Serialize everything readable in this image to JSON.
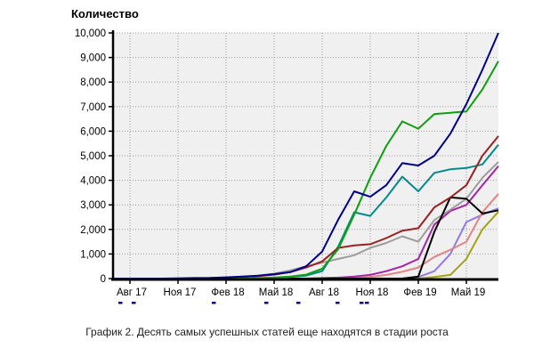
{
  "title": "Количество",
  "caption": "График 2. Десять самых успешных статей еще находятся в стадии роста",
  "colors": {
    "page_bg": "#ffffff",
    "plot_bg": "#f0f0f0",
    "grid": "#9a9a9a",
    "axis": "#000000",
    "tick_label": "#000000",
    "legend_cutoff": "#00008b"
  },
  "chart_data": {
    "type": "line",
    "title": "Количество",
    "xlabel": "",
    "ylabel": "Количество",
    "ylim": [
      0,
      10000
    ],
    "y_ticks": [
      0,
      1000,
      2000,
      3000,
      4000,
      5000,
      6000,
      7000,
      8000,
      9000,
      10000
    ],
    "y_tick_labels": [
      "0",
      "1,000",
      "2,000",
      "3,000",
      "4,000",
      "5,000",
      "6,000",
      "7,000",
      "8,000",
      "9,000",
      "10,000"
    ],
    "x_tick_labels": [
      "Авг 17",
      "Ноя 17",
      "Фев 18",
      "Май 18",
      "Авг 18",
      "Ноя 18",
      "Фев 19",
      "Май 19"
    ],
    "grid": "dotted, horizontal and vertical",
    "legend_position": "below x-axis, cut off by crop",
    "x": [
      "Июл 17",
      "Авг 17",
      "Сен 17",
      "Окт 17",
      "Ноя 17",
      "Дек 17",
      "Янв 18",
      "Фев 18",
      "Мар 18",
      "Апр 18",
      "Май 18",
      "Июн 18",
      "Июл 18",
      "Авг 18",
      "Сен 18",
      "Окт 18",
      "Ноя 18",
      "Дек 18",
      "Янв 19",
      "Фев 19",
      "Мар 19",
      "Апр 19",
      "Май 19",
      "Июн 19",
      "Июл 19"
    ],
    "x_tick_indices": [
      1,
      4,
      7,
      10,
      13,
      16,
      19,
      22
    ],
    "series_note": "10 articles, names not visible (legend cropped); series listed in draw order (last = topmost)",
    "series": [
      {
        "name": "olive",
        "color": "#A3A30F",
        "values": [
          0,
          0,
          0,
          0,
          0,
          0,
          0,
          0,
          0,
          0,
          0,
          0,
          0,
          0,
          0,
          0,
          0,
          0,
          0,
          0,
          60,
          150,
          800,
          2000,
          2720
        ]
      },
      {
        "name": "violet",
        "color": "#9678E6",
        "values": [
          0,
          0,
          0,
          0,
          0,
          0,
          0,
          0,
          0,
          0,
          0,
          0,
          0,
          0,
          0,
          0,
          0,
          0,
          0,
          60,
          300,
          1000,
          2300,
          2600,
          2860
        ]
      },
      {
        "name": "salmon",
        "color": "#E58383",
        "values": [
          0,
          0,
          0,
          0,
          0,
          0,
          0,
          0,
          0,
          0,
          0,
          0,
          0,
          0,
          0,
          20,
          60,
          150,
          280,
          450,
          880,
          1170,
          1500,
          2700,
          3450
        ]
      },
      {
        "name": "magenta",
        "color": "#A823A8",
        "values": [
          0,
          0,
          0,
          0,
          0,
          0,
          0,
          0,
          0,
          0,
          0,
          0,
          0,
          20,
          40,
          80,
          150,
          300,
          500,
          800,
          2200,
          2750,
          3000,
          3800,
          4580
        ]
      },
      {
        "name": "gray",
        "color": "#9C9C9C",
        "values": [
          0,
          0,
          0,
          0,
          0,
          10,
          20,
          30,
          60,
          120,
          200,
          330,
          500,
          650,
          800,
          950,
          1250,
          1450,
          1720,
          1500,
          2380,
          2800,
          3250,
          4100,
          4750
        ]
      },
      {
        "name": "black",
        "color": "#000000",
        "values": [
          0,
          0,
          0,
          0,
          0,
          0,
          0,
          0,
          0,
          0,
          0,
          0,
          0,
          0,
          0,
          0,
          0,
          0,
          0,
          80,
          1900,
          3300,
          3250,
          2650,
          2780
        ]
      },
      {
        "name": "teal",
        "color": "#008B8B",
        "values": [
          0,
          0,
          0,
          0,
          0,
          0,
          0,
          0,
          0,
          0,
          20,
          60,
          120,
          300,
          1300,
          2700,
          2550,
          3300,
          4150,
          3550,
          4300,
          4450,
          4500,
          4650,
          5450
        ]
      },
      {
        "name": "dark-red",
        "color": "#9B2121",
        "values": [
          0,
          0,
          0,
          0,
          0,
          0,
          0,
          30,
          60,
          100,
          160,
          260,
          450,
          700,
          1250,
          1350,
          1400,
          1650,
          1950,
          2050,
          2900,
          3300,
          3800,
          5000,
          5800
        ]
      },
      {
        "name": "green",
        "color": "#0FA00F",
        "values": [
          0,
          0,
          0,
          0,
          0,
          0,
          0,
          0,
          0,
          20,
          40,
          80,
          160,
          400,
          1200,
          2600,
          4100,
          5400,
          6400,
          6100,
          6700,
          6750,
          6800,
          7700,
          8850
        ]
      },
      {
        "name": "navy",
        "color": "#00008B",
        "values": [
          0,
          0,
          0,
          0,
          10,
          20,
          30,
          50,
          80,
          120,
          180,
          260,
          500,
          1100,
          2400,
          3550,
          3330,
          3800,
          4700,
          4600,
          5000,
          5900,
          7100,
          8500,
          10000
        ]
      }
    ]
  },
  "legend_cutoff": {
    "note": "tops of cropped blue legend text visible below axis labels",
    "marks_x": [
      133,
      148,
      238,
      297,
      333,
      377,
      404,
      410
    ]
  }
}
